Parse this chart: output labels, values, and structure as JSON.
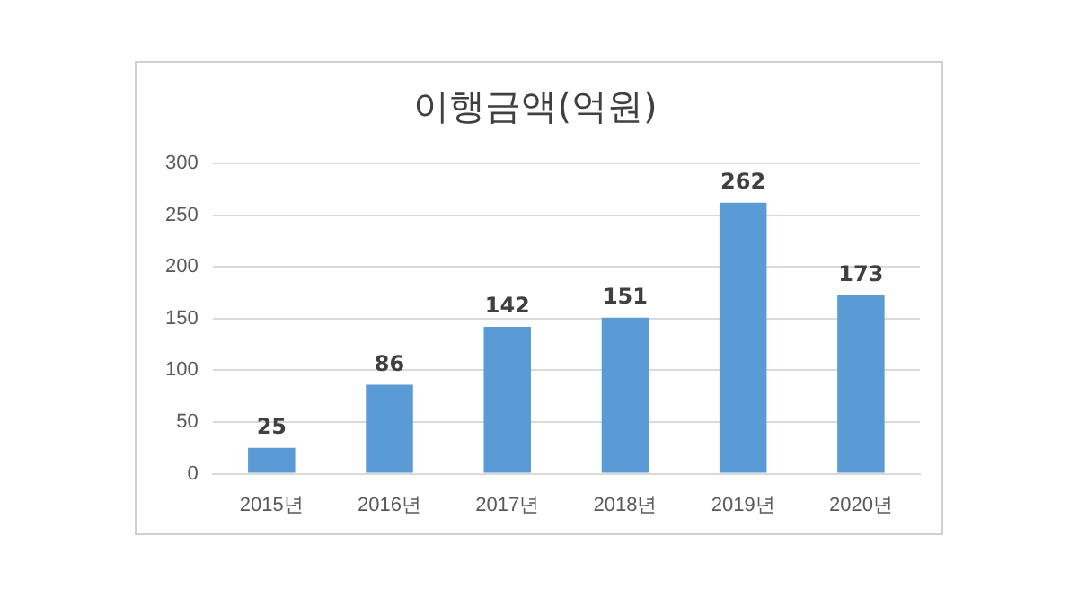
{
  "chart_data": {
    "type": "bar",
    "title": "이행금액(억원)",
    "categories": [
      "2015년",
      "2016년",
      "2017년",
      "2018년",
      "2019년",
      "2020년"
    ],
    "values": [
      25,
      86,
      142,
      151,
      262,
      173
    ],
    "color": "#5b9bd5",
    "ylim": [
      0,
      300
    ],
    "yticks": [
      0,
      50,
      100,
      150,
      200,
      250,
      300
    ],
    "grid": "y",
    "data_labels": true,
    "legend": false
  }
}
